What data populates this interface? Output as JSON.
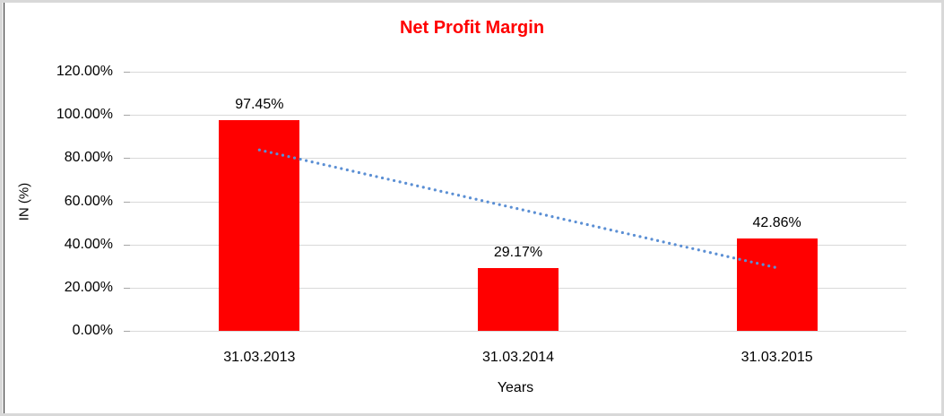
{
  "chart_data": {
    "type": "bar",
    "title": "Net Profit Margin",
    "title_color": "#ff0000",
    "xlabel": "Years",
    "ylabel": "IN (%)",
    "categories": [
      "31.03.2013",
      "31.03.2014",
      "31.03.2015"
    ],
    "values": [
      97.45,
      29.17,
      42.86
    ],
    "value_labels": [
      "97.45%",
      "29.17%",
      "42.86%"
    ],
    "bar_color": "#ff0000",
    "ylim": [
      0,
      120
    ],
    "y_ticks": [
      {
        "value": 0,
        "label": "0.00%"
      },
      {
        "value": 20,
        "label": "20.00%"
      },
      {
        "value": 40,
        "label": "40.00%"
      },
      {
        "value": 60,
        "label": "60.00%"
      },
      {
        "value": 80,
        "label": "80.00%"
      },
      {
        "value": 100,
        "label": "100.00%"
      },
      {
        "value": 120,
        "label": "120.00%"
      }
    ],
    "grid": true,
    "gridline_color": "#d9d9d9",
    "legend": "none",
    "trendline": {
      "type": "linear",
      "style": "dotted",
      "color": "#5b8fd4",
      "start_value": 83.79,
      "end_value": 29.2
    }
  }
}
